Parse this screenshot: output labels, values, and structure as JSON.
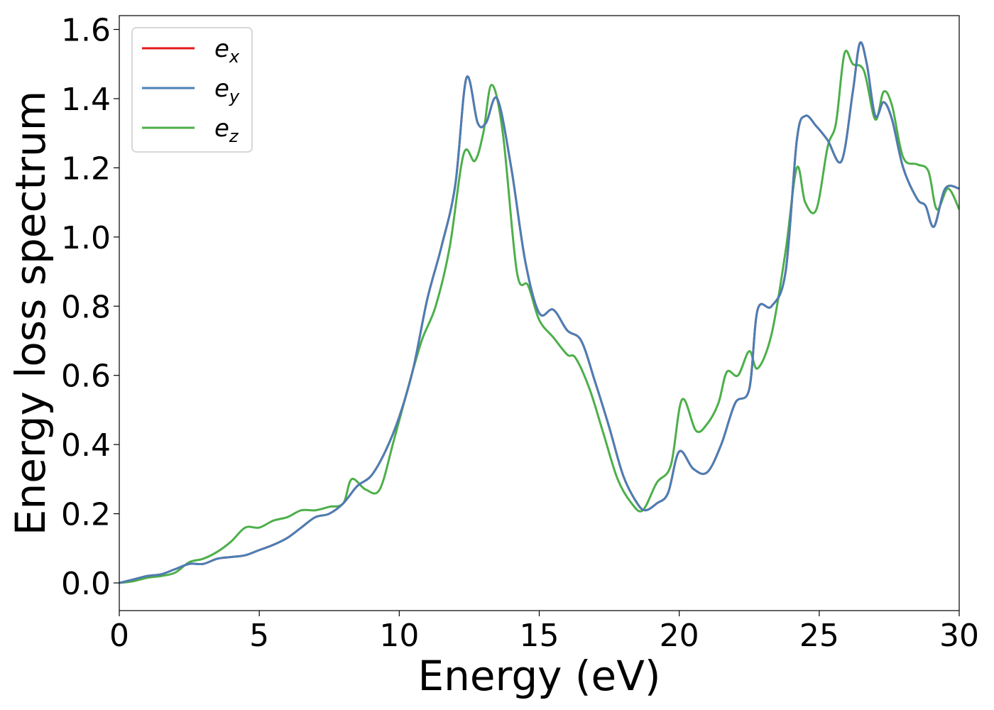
{
  "chart_data": {
    "type": "line",
    "title": "",
    "xlabel": "Energy (eV)",
    "ylabel": "Energy loss spectrum",
    "xlim": [
      0,
      30
    ],
    "ylim": [
      -0.08,
      1.64
    ],
    "xticks": [
      0,
      5,
      10,
      15,
      20,
      25,
      30
    ],
    "xtick_labels": [
      "0",
      "5",
      "10",
      "15",
      "20",
      "25",
      "30"
    ],
    "yticks": [
      0.0,
      0.2,
      0.4,
      0.6,
      0.8,
      1.0,
      1.2,
      1.4,
      1.6
    ],
    "ytick_labels": [
      "0.0",
      "0.2",
      "0.4",
      "0.6",
      "0.8",
      "1.0",
      "1.2",
      "1.4",
      "1.6"
    ],
    "grid": false,
    "legend_position": "top-left",
    "series": [
      {
        "name": "e_x",
        "label_base": "e",
        "label_sub": "x",
        "color": "#e41a1c",
        "x": [
          0,
          0.5,
          1,
          1.5,
          2,
          2.5,
          3,
          3.5,
          4,
          4.5,
          5,
          5.5,
          6,
          6.5,
          7,
          7.5,
          8,
          8.5,
          9,
          9.5,
          10,
          10.5,
          11,
          11.5,
          12,
          12.4,
          12.8,
          13.1,
          13.5,
          14,
          14.5,
          15,
          15.5,
          16,
          16.5,
          17,
          17.5,
          18,
          18.5,
          18.8,
          19.2,
          19.6,
          20,
          20.5,
          21,
          21.5,
          22,
          22.5,
          22.8,
          23.3,
          23.8,
          24.2,
          24.5,
          24.9,
          25.3,
          25.8,
          26.2,
          26.45,
          26.7,
          27,
          27.3,
          27.6,
          28,
          28.5,
          28.8,
          29.1,
          29.5,
          30
        ],
        "y": [
          0.0,
          0.01,
          0.02,
          0.025,
          0.04,
          0.055,
          0.055,
          0.07,
          0.075,
          0.08,
          0.095,
          0.11,
          0.13,
          0.16,
          0.19,
          0.2,
          0.23,
          0.28,
          0.31,
          0.38,
          0.48,
          0.62,
          0.82,
          0.97,
          1.15,
          1.46,
          1.33,
          1.33,
          1.4,
          1.2,
          0.93,
          0.78,
          0.79,
          0.73,
          0.7,
          0.58,
          0.45,
          0.31,
          0.23,
          0.21,
          0.23,
          0.26,
          0.38,
          0.33,
          0.32,
          0.4,
          0.52,
          0.56,
          0.79,
          0.8,
          0.9,
          1.28,
          1.35,
          1.32,
          1.28,
          1.22,
          1.42,
          1.56,
          1.5,
          1.35,
          1.39,
          1.34,
          1.2,
          1.11,
          1.09,
          1.03,
          1.14,
          1.14
        ]
      },
      {
        "name": "e_y",
        "label_base": "e",
        "label_sub": "y",
        "color": "#4a7fb5",
        "x": [
          0,
          0.5,
          1,
          1.5,
          2,
          2.5,
          3,
          3.5,
          4,
          4.5,
          5,
          5.5,
          6,
          6.5,
          7,
          7.5,
          8,
          8.5,
          9,
          9.5,
          10,
          10.5,
          11,
          11.5,
          12,
          12.4,
          12.8,
          13.1,
          13.5,
          14,
          14.5,
          15,
          15.5,
          16,
          16.5,
          17,
          17.5,
          18,
          18.5,
          18.8,
          19.2,
          19.6,
          20,
          20.5,
          21,
          21.5,
          22,
          22.5,
          22.8,
          23.3,
          23.8,
          24.2,
          24.5,
          24.9,
          25.3,
          25.8,
          26.2,
          26.45,
          26.7,
          27,
          27.3,
          27.6,
          28,
          28.5,
          28.8,
          29.1,
          29.5,
          30
        ],
        "y": [
          0.0,
          0.01,
          0.02,
          0.025,
          0.04,
          0.055,
          0.055,
          0.07,
          0.075,
          0.08,
          0.095,
          0.11,
          0.13,
          0.16,
          0.19,
          0.2,
          0.23,
          0.28,
          0.31,
          0.38,
          0.48,
          0.62,
          0.82,
          0.97,
          1.15,
          1.46,
          1.33,
          1.33,
          1.4,
          1.2,
          0.93,
          0.78,
          0.79,
          0.73,
          0.7,
          0.58,
          0.45,
          0.31,
          0.23,
          0.21,
          0.23,
          0.26,
          0.38,
          0.33,
          0.32,
          0.4,
          0.52,
          0.56,
          0.79,
          0.8,
          0.9,
          1.28,
          1.35,
          1.32,
          1.28,
          1.22,
          1.42,
          1.56,
          1.5,
          1.35,
          1.39,
          1.34,
          1.2,
          1.11,
          1.09,
          1.03,
          1.14,
          1.14
        ]
      },
      {
        "name": "e_z",
        "label_base": "e",
        "label_sub": "z",
        "color": "#4daf4a",
        "x": [
          0,
          0.5,
          1,
          1.5,
          2,
          2.5,
          3,
          3.5,
          4,
          4.5,
          5,
          5.5,
          6,
          6.5,
          7,
          7.5,
          8,
          8.3,
          8.8,
          9.3,
          9.8,
          10.3,
          10.8,
          11.3,
          11.8,
          12.3,
          12.7,
          13.0,
          13.3,
          13.7,
          14.2,
          14.6,
          15,
          15.5,
          16,
          16.3,
          16.8,
          17.3,
          17.8,
          18.3,
          18.7,
          19.2,
          19.7,
          20.1,
          20.6,
          21.0,
          21.4,
          21.7,
          22.1,
          22.5,
          22.8,
          23.3,
          23.8,
          24.2,
          24.5,
          24.9,
          25.3,
          25.6,
          25.9,
          26.2,
          26.6,
          27.0,
          27.3,
          27.6,
          28,
          28.5,
          28.9,
          29.2,
          29.6,
          30
        ],
        "y": [
          0.0,
          0.005,
          0.015,
          0.02,
          0.03,
          0.06,
          0.07,
          0.09,
          0.12,
          0.16,
          0.16,
          0.18,
          0.19,
          0.21,
          0.21,
          0.22,
          0.23,
          0.3,
          0.27,
          0.27,
          0.41,
          0.56,
          0.7,
          0.8,
          0.97,
          1.24,
          1.22,
          1.3,
          1.44,
          1.3,
          0.9,
          0.86,
          0.76,
          0.71,
          0.66,
          0.65,
          0.56,
          0.43,
          0.3,
          0.23,
          0.21,
          0.29,
          0.34,
          0.53,
          0.44,
          0.46,
          0.52,
          0.61,
          0.6,
          0.67,
          0.62,
          0.72,
          0.96,
          1.2,
          1.1,
          1.08,
          1.26,
          1.33,
          1.53,
          1.5,
          1.48,
          1.34,
          1.42,
          1.38,
          1.23,
          1.21,
          1.19,
          1.08,
          1.14,
          1.08
        ]
      }
    ]
  }
}
